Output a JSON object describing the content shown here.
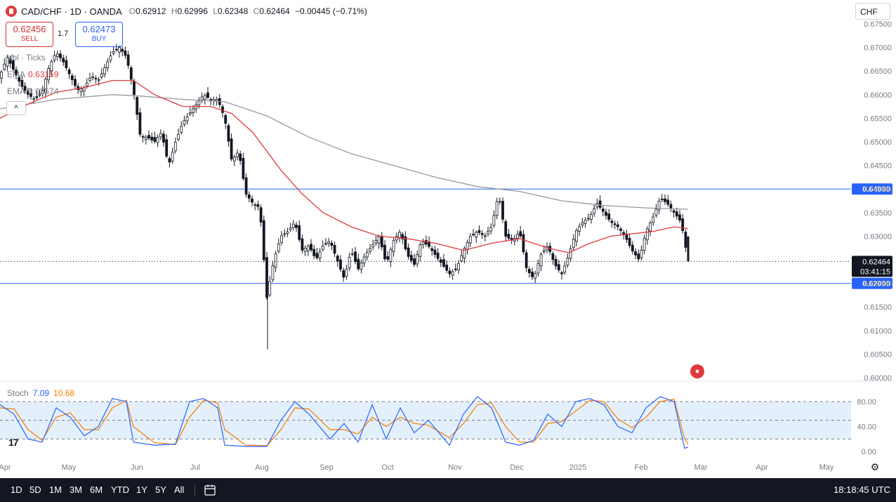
{
  "header": {
    "symbol": "CAD/CHF · 1D · OANDA",
    "open_label": "O",
    "open": "0.62912",
    "high_label": "H",
    "high": "0.62996",
    "low_label": "L",
    "low": "0.62348",
    "close_label": "C",
    "close": "0.62464",
    "change": "−0.00445 (−0.71%)"
  },
  "trade": {
    "sell_price": "0.62456",
    "sell_label": "SELL",
    "spread": "1.7",
    "buy_price": "0.62473",
    "buy_label": "BUY"
  },
  "indicators": [
    {
      "name": "Vol · Ticks",
      "value": ""
    },
    {
      "name": "EMA",
      "value": "0.63159"
    },
    {
      "name": "EMA",
      "value": "0.63574"
    }
  ],
  "collapse_label": "^",
  "currency": "CHF",
  "stoch": {
    "label": "Stoch",
    "k": "7.09",
    "d": "10.68"
  },
  "tv_logo": "17",
  "calendar_flag": "●",
  "toolbar": {
    "timeframes": [
      "1D",
      "5D",
      "1M",
      "3M",
      "6M",
      "YTD",
      "1Y",
      "5Y",
      "All"
    ],
    "clock": "18:18:45 UTC"
  },
  "colors": {
    "up": "#131722",
    "down": "#131722",
    "ema_fast": "#e03a3e",
    "ema_slow": "#9598a1",
    "hline": "#2962ff",
    "stoch_k": "#2962ff",
    "stoch_d": "#f57c00",
    "stoch_band": "#e3f0fc"
  },
  "chart_data": {
    "type": "candlestick",
    "price_axis": {
      "min": 0.6,
      "max": 0.675,
      "ticks": [
        "0.67500",
        "0.67000",
        "0.66500",
        "0.66000",
        "0.65500",
        "0.65000",
        "0.64500",
        "0.64000",
        "0.63500",
        "0.63000",
        "0.62500",
        "0.62000",
        "0.61500",
        "0.61000",
        "0.60500",
        "0.60000"
      ]
    },
    "horizontal_lines": [
      {
        "value": 0.64,
        "label": "0.64000"
      },
      {
        "value": 0.62,
        "label": "0.62000"
      }
    ],
    "last_price": {
      "value": 0.62464,
      "label": "0.62464",
      "countdown": "03:41:15"
    },
    "x_axis_labels": [
      "Apr",
      "May",
      "Jun",
      "Jul",
      "Aug",
      "Sep",
      "Oct",
      "Nov",
      "Dec",
      "2025",
      "Feb",
      "Mar",
      "Apr",
      "May"
    ],
    "stoch_axis": {
      "ticks": [
        "80.00",
        "40.00",
        "0.00"
      ],
      "band": [
        20,
        80
      ]
    },
    "close_path": [
      [
        0,
        0.664
      ],
      [
        10,
        0.668
      ],
      [
        20,
        0.665
      ],
      [
        30,
        0.662
      ],
      [
        40,
        0.66
      ],
      [
        50,
        0.659
      ],
      [
        60,
        0.6605
      ],
      [
        70,
        0.666
      ],
      [
        80,
        0.669
      ],
      [
        90,
        0.667
      ],
      [
        100,
        0.664
      ],
      [
        110,
        0.661
      ],
      [
        120,
        0.6615
      ],
      [
        130,
        0.664
      ],
      [
        140,
        0.663
      ],
      [
        150,
        0.666
      ],
      [
        160,
        0.669
      ],
      [
        170,
        0.67
      ],
      [
        180,
        0.668
      ],
      [
        190,
        0.661
      ],
      [
        200,
        0.651
      ],
      [
        210,
        0.651
      ],
      [
        220,
        0.65
      ],
      [
        230,
        0.652
      ],
      [
        240,
        0.645
      ],
      [
        250,
        0.65
      ],
      [
        260,
        0.654
      ],
      [
        270,
        0.656
      ],
      [
        280,
        0.658
      ],
      [
        290,
        0.66
      ],
      [
        300,
        0.659
      ],
      [
        310,
        0.659
      ],
      [
        320,
        0.655
      ],
      [
        330,
        0.646
      ],
      [
        340,
        0.648
      ],
      [
        350,
        0.639
      ],
      [
        360,
        0.637
      ],
      [
        370,
        0.636
      ],
      [
        380,
        0.617
      ],
      [
        390,
        0.625
      ],
      [
        400,
        0.63
      ],
      [
        410,
        0.631
      ],
      [
        420,
        0.633
      ],
      [
        430,
        0.627
      ],
      [
        440,
        0.628
      ],
      [
        450,
        0.625
      ],
      [
        460,
        0.628
      ],
      [
        470,
        0.629
      ],
      [
        480,
        0.625
      ],
      [
        490,
        0.621
      ],
      [
        500,
        0.627
      ],
      [
        510,
        0.623
      ],
      [
        520,
        0.626
      ],
      [
        530,
        0.628
      ],
      [
        540,
        0.63
      ],
      [
        550,
        0.624
      ],
      [
        560,
        0.629
      ],
      [
        570,
        0.631
      ],
      [
        580,
        0.626
      ],
      [
        590,
        0.624
      ],
      [
        600,
        0.629
      ],
      [
        610,
        0.628
      ],
      [
        620,
        0.626
      ],
      [
        630,
        0.624
      ],
      [
        640,
        0.622
      ],
      [
        650,
        0.623
      ],
      [
        660,
        0.627
      ],
      [
        670,
        0.63
      ],
      [
        680,
        0.631
      ],
      [
        690,
        0.63
      ],
      [
        700,
        0.632
      ],
      [
        710,
        0.639
      ],
      [
        720,
        0.63
      ],
      [
        730,
        0.629
      ],
      [
        740,
        0.631
      ],
      [
        750,
        0.623
      ],
      [
        760,
        0.621
      ],
      [
        770,
        0.626
      ],
      [
        780,
        0.628
      ],
      [
        790,
        0.624
      ],
      [
        800,
        0.622
      ],
      [
        810,
        0.626
      ],
      [
        820,
        0.631
      ],
      [
        830,
        0.633
      ],
      [
        840,
        0.634
      ],
      [
        850,
        0.637
      ],
      [
        860,
        0.635
      ],
      [
        870,
        0.633
      ],
      [
        880,
        0.632
      ],
      [
        890,
        0.63
      ],
      [
        900,
        0.627
      ],
      [
        910,
        0.625
      ],
      [
        920,
        0.631
      ],
      [
        930,
        0.634
      ],
      [
        940,
        0.638
      ],
      [
        950,
        0.637
      ],
      [
        960,
        0.635
      ],
      [
        970,
        0.633
      ],
      [
        980,
        0.6246
      ]
    ],
    "ema_fast_path": [
      [
        0,
        0.655
      ],
      [
        40,
        0.658
      ],
      [
        80,
        0.6605
      ],
      [
        120,
        0.6615
      ],
      [
        160,
        0.663
      ],
      [
        190,
        0.663
      ],
      [
        220,
        0.66
      ],
      [
        260,
        0.6575
      ],
      [
        300,
        0.6575
      ],
      [
        330,
        0.656
      ],
      [
        360,
        0.652
      ],
      [
        380,
        0.648
      ],
      [
        400,
        0.644
      ],
      [
        430,
        0.639
      ],
      [
        460,
        0.635
      ],
      [
        500,
        0.632
      ],
      [
        540,
        0.63
      ],
      [
        580,
        0.6295
      ],
      [
        620,
        0.6285
      ],
      [
        660,
        0.627
      ],
      [
        700,
        0.6285
      ],
      [
        740,
        0.6295
      ],
      [
        780,
        0.6275
      ],
      [
        810,
        0.6265
      ],
      [
        840,
        0.6285
      ],
      [
        870,
        0.63
      ],
      [
        900,
        0.6305
      ],
      [
        930,
        0.631
      ],
      [
        960,
        0.632
      ],
      [
        980,
        0.6316
      ]
    ],
    "ema_slow_path": [
      [
        0,
        0.657
      ],
      [
        80,
        0.659
      ],
      [
        160,
        0.66
      ],
      [
        200,
        0.6597
      ],
      [
        260,
        0.659
      ],
      [
        320,
        0.6585
      ],
      [
        380,
        0.6555
      ],
      [
        440,
        0.651
      ],
      [
        500,
        0.6475
      ],
      [
        560,
        0.645
      ],
      [
        620,
        0.6425
      ],
      [
        680,
        0.6405
      ],
      [
        740,
        0.6395
      ],
      [
        800,
        0.6375
      ],
      [
        860,
        0.6365
      ],
      [
        920,
        0.636
      ],
      [
        960,
        0.6358
      ],
      [
        980,
        0.6357
      ]
    ],
    "stoch_k": [
      [
        0,
        75
      ],
      [
        20,
        60
      ],
      [
        40,
        20
      ],
      [
        60,
        15
      ],
      [
        80,
        70
      ],
      [
        100,
        55
      ],
      [
        120,
        25
      ],
      [
        140,
        40
      ],
      [
        160,
        85
      ],
      [
        180,
        80
      ],
      [
        190,
        15
      ],
      [
        220,
        10
      ],
      [
        250,
        12
      ],
      [
        270,
        80
      ],
      [
        290,
        85
      ],
      [
        310,
        70
      ],
      [
        320,
        10
      ],
      [
        350,
        8
      ],
      [
        380,
        8
      ],
      [
        400,
        50
      ],
      [
        420,
        80
      ],
      [
        440,
        60
      ],
      [
        470,
        20
      ],
      [
        490,
        45
      ],
      [
        510,
        15
      ],
      [
        530,
        75
      ],
      [
        550,
        20
      ],
      [
        570,
        70
      ],
      [
        590,
        30
      ],
      [
        610,
        50
      ],
      [
        640,
        10
      ],
      [
        660,
        60
      ],
      [
        680,
        88
      ],
      [
        700,
        70
      ],
      [
        720,
        15
      ],
      [
        740,
        10
      ],
      [
        760,
        18
      ],
      [
        780,
        60
      ],
      [
        800,
        40
      ],
      [
        820,
        80
      ],
      [
        840,
        85
      ],
      [
        860,
        75
      ],
      [
        880,
        40
      ],
      [
        900,
        30
      ],
      [
        920,
        70
      ],
      [
        940,
        88
      ],
      [
        960,
        80
      ],
      [
        975,
        5
      ],
      [
        980,
        7
      ]
    ],
    "stoch_d": [
      [
        0,
        70
      ],
      [
        20,
        68
      ],
      [
        40,
        35
      ],
      [
        60,
        18
      ],
      [
        80,
        55
      ],
      [
        100,
        62
      ],
      [
        120,
        35
      ],
      [
        140,
        35
      ],
      [
        160,
        70
      ],
      [
        180,
        82
      ],
      [
        190,
        40
      ],
      [
        220,
        14
      ],
      [
        250,
        11
      ],
      [
        270,
        55
      ],
      [
        290,
        82
      ],
      [
        310,
        78
      ],
      [
        320,
        35
      ],
      [
        350,
        10
      ],
      [
        380,
        9
      ],
      [
        400,
        35
      ],
      [
        420,
        70
      ],
      [
        440,
        68
      ],
      [
        470,
        35
      ],
      [
        490,
        35
      ],
      [
        510,
        28
      ],
      [
        530,
        55
      ],
      [
        550,
        40
      ],
      [
        570,
        55
      ],
      [
        590,
        45
      ],
      [
        610,
        42
      ],
      [
        640,
        22
      ],
      [
        660,
        45
      ],
      [
        680,
        75
      ],
      [
        700,
        78
      ],
      [
        720,
        40
      ],
      [
        740,
        15
      ],
      [
        760,
        15
      ],
      [
        780,
        45
      ],
      [
        800,
        48
      ],
      [
        820,
        65
      ],
      [
        840,
        82
      ],
      [
        860,
        80
      ],
      [
        880,
        52
      ],
      [
        900,
        38
      ],
      [
        920,
        55
      ],
      [
        940,
        80
      ],
      [
        960,
        84
      ],
      [
        975,
        20
      ],
      [
        980,
        11
      ]
    ]
  }
}
